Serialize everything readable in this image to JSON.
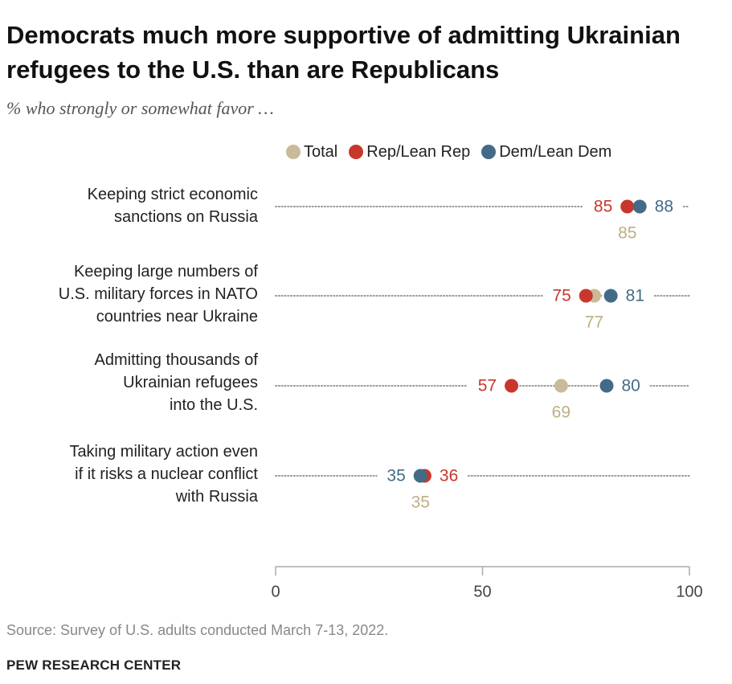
{
  "title": "Democrats much more supportive of admitting Ukrainian refugees to the U.S. than are Republicans",
  "subtitle": "% who strongly or somewhat favor …",
  "source": "Source: Survey of U.S. adults conducted March 7-13, 2022.",
  "brand": "PEW RESEARCH CENTER",
  "colors": {
    "total": "#c9bb9a",
    "rep": "#c8372b",
    "dem": "#436b87",
    "total_text": "#bfae86",
    "rep_text": "#c8372b",
    "dem_text": "#436b87",
    "dots": "#9a9a9a",
    "axis": "#aaaaaa"
  },
  "legend": [
    {
      "key": "total",
      "label": "Total"
    },
    {
      "key": "rep",
      "label": "Rep/Lean Rep"
    },
    {
      "key": "dem",
      "label": "Dem/Lean Dem"
    }
  ],
  "chart_data": {
    "type": "dot",
    "title": "Democrats much more supportive of admitting Ukrainian refugees to the U.S. than are Republicans",
    "subtitle": "% who strongly or somewhat favor …",
    "xlim": [
      0,
      100
    ],
    "ticks": [
      0,
      50,
      100
    ],
    "tick_labels": [
      "0",
      "50",
      "100"
    ],
    "grid": false,
    "legend_position": "top",
    "categories": [
      [
        "Keeping strict economic",
        "sanctions on Russia"
      ],
      [
        "Keeping large numbers of",
        "U.S. military forces in NATO",
        "countries near Ukraine"
      ],
      [
        "Admitting thousands of",
        "Ukrainian refugees",
        "into the U.S."
      ],
      [
        "Taking military action even",
        "if it risks a nuclear conflict",
        "with Russia"
      ]
    ],
    "series": [
      {
        "name": "Total",
        "key": "total",
        "values": [
          85,
          77,
          69,
          35
        ]
      },
      {
        "name": "Rep/Lean Rep",
        "key": "rep",
        "values": [
          85,
          75,
          57,
          36
        ]
      },
      {
        "name": "Dem/Lean Dem",
        "key": "dem",
        "values": [
          88,
          81,
          80,
          35
        ]
      }
    ]
  }
}
